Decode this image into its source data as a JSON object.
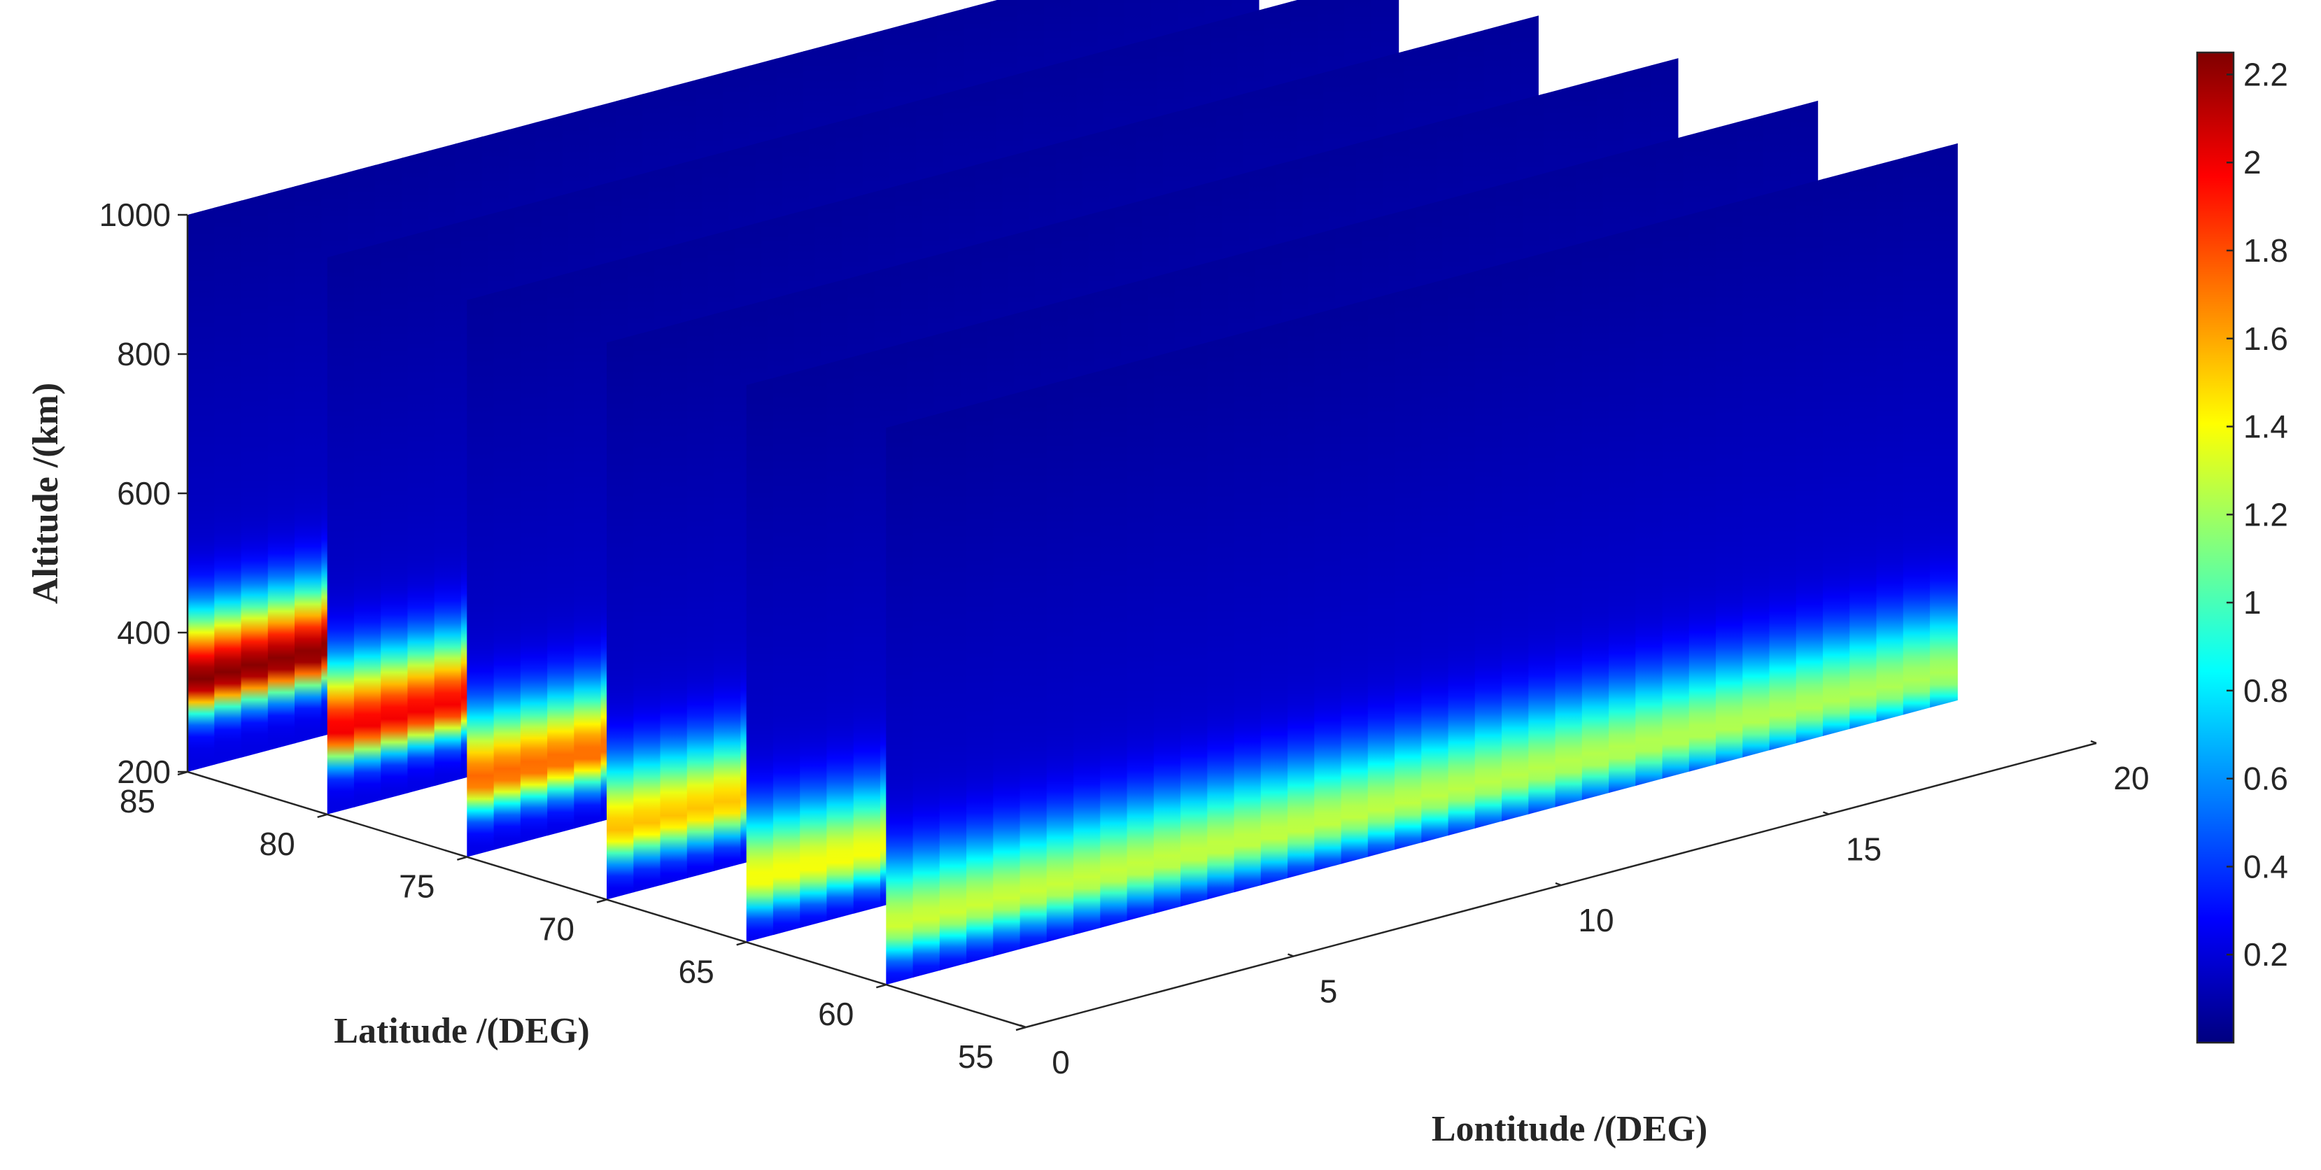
{
  "chart_data": {
    "type": "heatmap",
    "subtype": "3d-slice",
    "xlabel": "Lontitude /(DEG)",
    "ylabel": "Latitude /(DEG)",
    "zlabel": "Altitude /(km)",
    "xlim": [
      0,
      20
    ],
    "ylim": [
      55,
      85
    ],
    "zlim": [
      200,
      1000
    ],
    "x_ticks": [
      "0",
      "5",
      "10",
      "15",
      "20"
    ],
    "y_ticks": [
      "55",
      "60",
      "65",
      "70",
      "75",
      "80",
      "85"
    ],
    "z_ticks": [
      "200",
      "400",
      "600",
      "800",
      "1000"
    ],
    "colormap": "jet",
    "colorbar": {
      "limits": [
        0,
        2.25
      ],
      "ticks": [
        "0.2",
        "0.4",
        "0.6",
        "0.8",
        "1",
        "1.2",
        "1.4",
        "1.6",
        "1.8",
        "2",
        "2.2"
      ]
    },
    "slices": [
      {
        "latitude": 85,
        "peak_altitude_km": [
          330,
          280
        ],
        "peak_value": 2.25
      },
      {
        "latitude": 80,
        "peak_altitude_km": [
          320,
          270
        ],
        "peak_value": 2.0
      },
      {
        "latitude": 75,
        "peak_altitude_km": [
          310,
          265
        ],
        "peak_value": 1.75
      },
      {
        "latitude": 70,
        "peak_altitude_km": [
          300,
          255
        ],
        "peak_value": 1.55
      },
      {
        "latitude": 65,
        "peak_altitude_km": [
          290,
          250
        ],
        "peak_value": 1.4
      },
      {
        "latitude": 60,
        "peak_altitude_km": [
          285,
          245
        ],
        "peak_value": 1.3
      }
    ]
  }
}
